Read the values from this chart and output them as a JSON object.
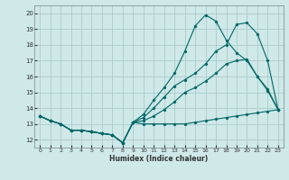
{
  "title": "",
  "xlabel": "Humidex (Indice chaleur)",
  "ylabel": "",
  "bg_color": "#cfe8e8",
  "grid_color": "#aacccc",
  "line_color": "#006666",
  "xlim": [
    -0.5,
    23.5
  ],
  "ylim": [
    11.5,
    20.5
  ],
  "yticks": [
    12,
    13,
    14,
    15,
    16,
    17,
    18,
    19,
    20
  ],
  "xticks": [
    0,
    1,
    2,
    3,
    4,
    5,
    6,
    7,
    8,
    9,
    10,
    11,
    12,
    13,
    14,
    15,
    16,
    17,
    18,
    19,
    20,
    21,
    22,
    23
  ],
  "series": [
    [
      13.5,
      13.2,
      13.0,
      12.6,
      12.6,
      12.5,
      12.4,
      12.3,
      11.8,
      13.1,
      13.0,
      13.0,
      13.0,
      13.0,
      13.0,
      13.1,
      13.2,
      13.3,
      13.4,
      13.5,
      13.6,
      13.7,
      13.8,
      13.9
    ],
    [
      13.5,
      13.2,
      13.0,
      12.6,
      12.6,
      12.5,
      12.4,
      12.3,
      11.8,
      13.1,
      13.2,
      13.5,
      13.9,
      14.4,
      15.0,
      15.3,
      15.7,
      16.2,
      16.8,
      17.0,
      17.1,
      16.0,
      15.1,
      13.9
    ],
    [
      13.5,
      13.2,
      13.0,
      12.6,
      12.6,
      12.5,
      12.4,
      12.3,
      11.8,
      13.1,
      13.4,
      14.0,
      14.7,
      15.4,
      15.8,
      16.2,
      16.8,
      17.6,
      18.0,
      19.3,
      19.4,
      18.7,
      17.0,
      13.9
    ],
    [
      13.5,
      13.2,
      13.0,
      12.6,
      12.6,
      12.5,
      12.4,
      12.3,
      11.8,
      13.1,
      13.6,
      14.5,
      15.3,
      16.2,
      17.6,
      19.2,
      19.9,
      19.5,
      18.3,
      17.5,
      17.0,
      16.0,
      15.2,
      13.9
    ]
  ]
}
